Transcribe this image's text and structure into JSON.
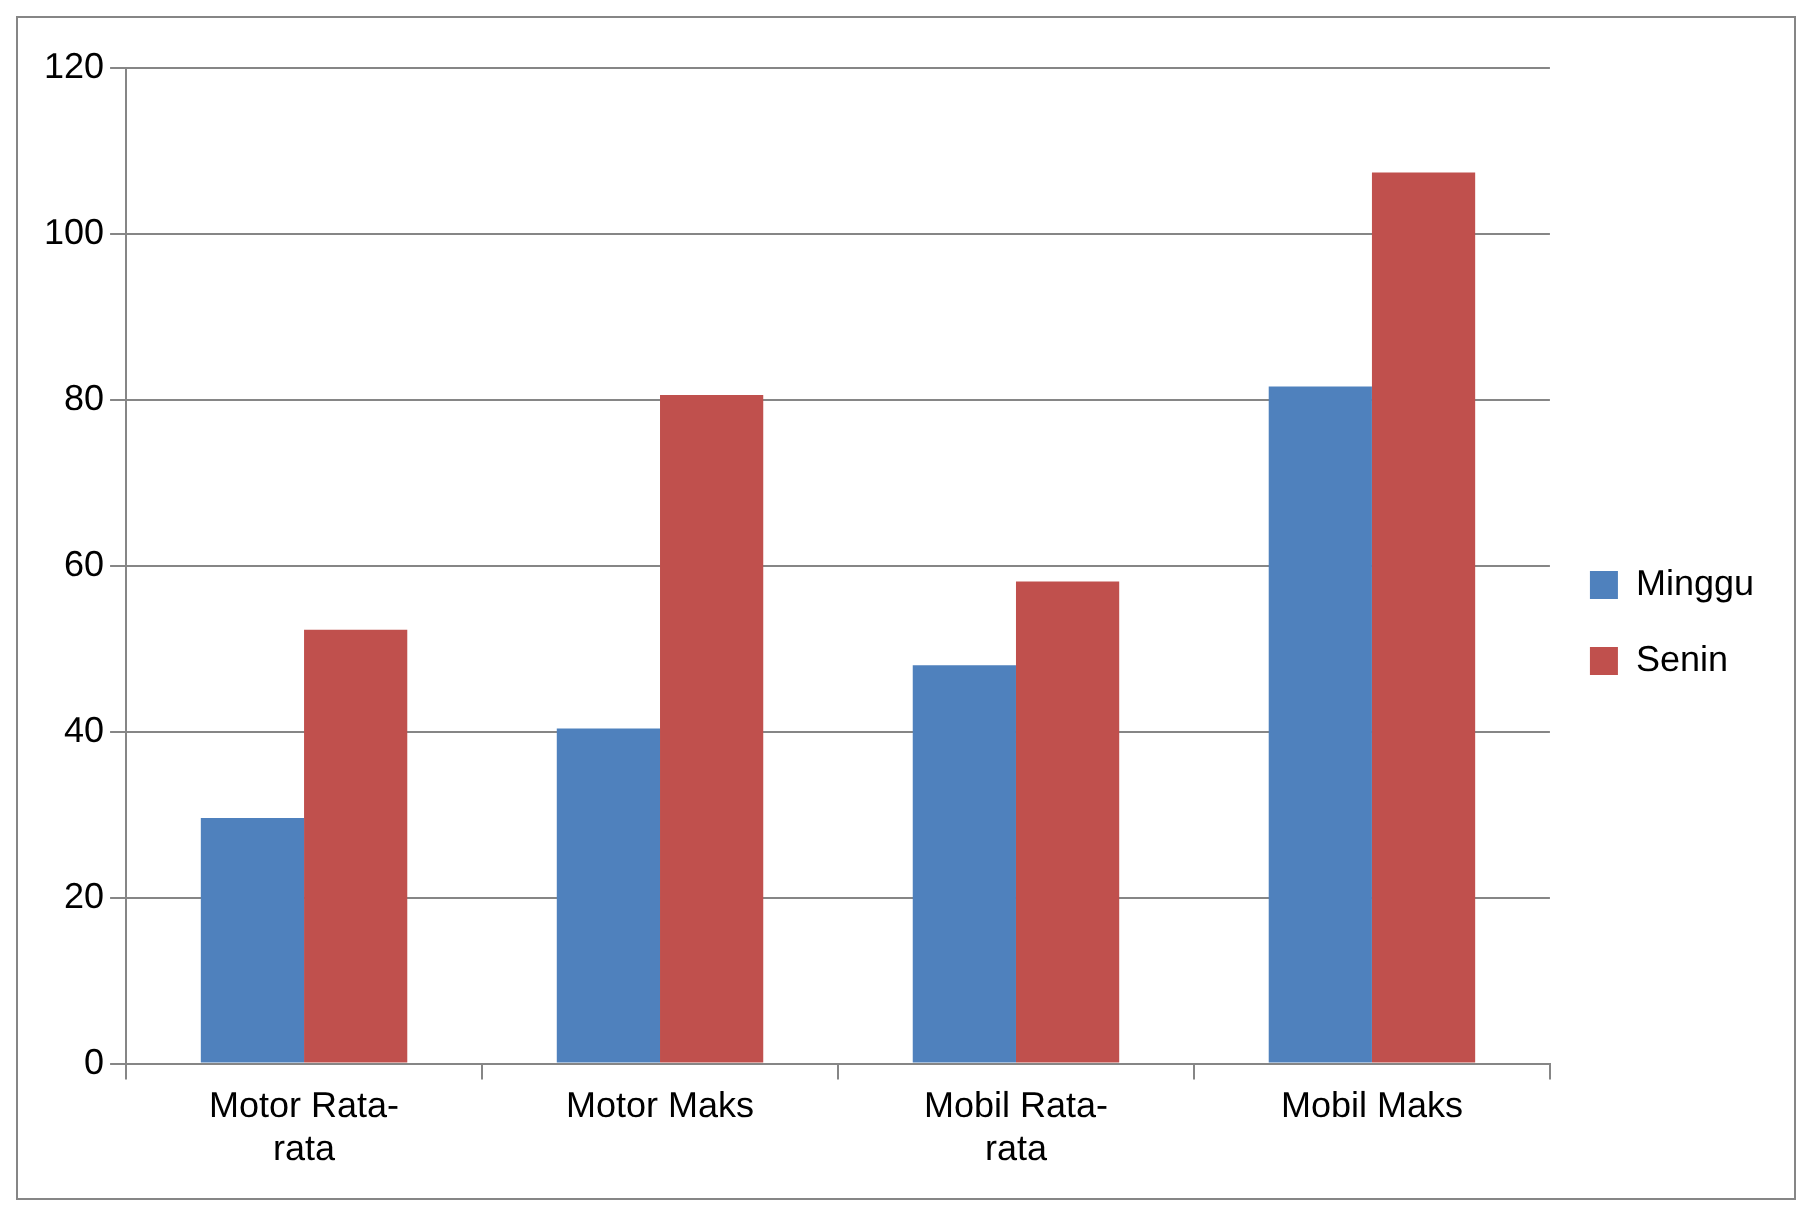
{
  "chart_data": {
    "type": "bar",
    "categories": [
      "Motor Rata-rata",
      "Motor Maks",
      "Mobil Rata-rata",
      "Mobil Maks"
    ],
    "series": [
      {
        "name": "Minggu",
        "color": "#4f81bd",
        "values": [
          29.6,
          40.4,
          48.0,
          81.6
        ]
      },
      {
        "name": "Senin",
        "color": "#c0504d",
        "values": [
          52.3,
          80.6,
          58.1,
          107.4
        ]
      }
    ],
    "ylim": [
      0,
      120
    ],
    "yticks": [
      0,
      20,
      40,
      60,
      80,
      100,
      120
    ],
    "grid": "y",
    "legend": "right"
  }
}
